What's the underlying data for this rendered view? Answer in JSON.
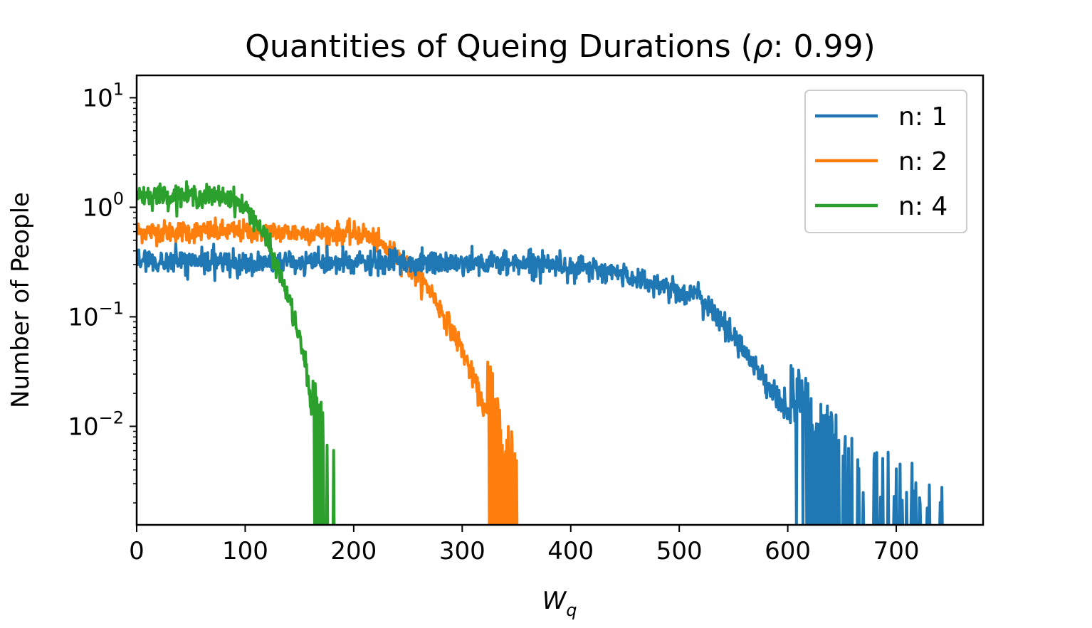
{
  "chart_data": {
    "type": "line",
    "title": "Quantities of Queing Durations (ρ: 0.99)",
    "title_parts": {
      "prefix": "Quantities of Queing Durations (",
      "rho": "ρ",
      "suffix": ": 0.99)"
    },
    "xlabel": "W",
    "xlabel_sub": "q",
    "ylabel": "Number of People",
    "yscale": "log",
    "xlim": [
      0,
      780
    ],
    "ylim": [
      0.00126,
      16
    ],
    "x_ticks": [
      {
        "value": 0,
        "label": "0"
      },
      {
        "value": 100,
        "label": "100"
      },
      {
        "value": 200,
        "label": "200"
      },
      {
        "value": 300,
        "label": "300"
      },
      {
        "value": 400,
        "label": "400"
      },
      {
        "value": 500,
        "label": "500"
      },
      {
        "value": 600,
        "label": "600"
      },
      {
        "value": 700,
        "label": "700"
      }
    ],
    "y_ticks": [
      {
        "value": 10,
        "base": "10",
        "exp": "1"
      },
      {
        "value": 1,
        "base": "10",
        "exp": "0"
      },
      {
        "value": 0.1,
        "base": "10",
        "exp": "−1"
      },
      {
        "value": 0.01,
        "base": "10",
        "exp": "−2"
      }
    ],
    "legend_position": "top-right",
    "series": [
      {
        "name": "n: 1",
        "color": "#1f77b4",
        "x_end": 743,
        "profile": [
          [
            0,
            0.32
          ],
          [
            100,
            0.31
          ],
          [
            250,
            0.31
          ],
          [
            380,
            0.31
          ],
          [
            450,
            0.24
          ],
          [
            520,
            0.15
          ],
          [
            560,
            0.05
          ],
          [
            600,
            0.013
          ],
          [
            640,
            0.004
          ],
          [
            700,
            0.0015
          ],
          [
            743,
            0.0013
          ]
        ],
        "noise": 0.055
      },
      {
        "name": "n: 2",
        "color": "#ff7f0e",
        "x_end": 352,
        "profile": [
          [
            0,
            0.6
          ],
          [
            100,
            0.6
          ],
          [
            210,
            0.57
          ],
          [
            240,
            0.36
          ],
          [
            270,
            0.18
          ],
          [
            300,
            0.05
          ],
          [
            320,
            0.015
          ],
          [
            340,
            0.004
          ],
          [
            352,
            0.0015
          ]
        ],
        "noise": 0.05
      },
      {
        "name": "n: 4",
        "color": "#2ca02c",
        "x_end": 184,
        "profile": [
          [
            0,
            1.3
          ],
          [
            85,
            1.25
          ],
          [
            105,
            0.9
          ],
          [
            120,
            0.5
          ],
          [
            140,
            0.15
          ],
          [
            155,
            0.04
          ],
          [
            165,
            0.008
          ],
          [
            175,
            0.003
          ],
          [
            184,
            0.0018
          ]
        ],
        "noise": 0.05
      }
    ]
  }
}
